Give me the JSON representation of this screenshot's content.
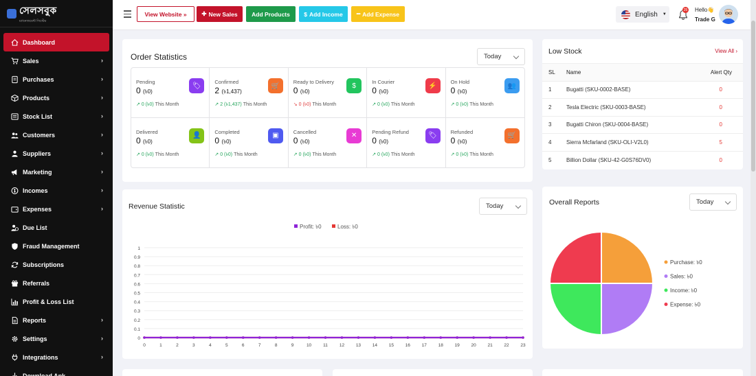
{
  "app": {
    "logo_text": "সেলসবুক",
    "logo_sub": "ম্যানেজমেন্ট সিস্টেম"
  },
  "sidebar": {
    "items": [
      {
        "label": "Dashboard",
        "icon": "home-icon",
        "chev": false
      },
      {
        "label": "Sales",
        "icon": "cart-icon",
        "chev": true
      },
      {
        "label": "Purchases",
        "icon": "purchase-icon",
        "chev": true
      },
      {
        "label": "Products",
        "icon": "box-icon",
        "chev": true
      },
      {
        "label": "Stock List",
        "icon": "list-icon",
        "chev": true
      },
      {
        "label": "Customers",
        "icon": "users-icon",
        "chev": true
      },
      {
        "label": "Suppliers",
        "icon": "supplier-icon",
        "chev": true
      },
      {
        "label": "Marketing",
        "icon": "megaphone-icon",
        "chev": true
      },
      {
        "label": "Incomes",
        "icon": "coin-icon",
        "chev": true
      },
      {
        "label": "Expenses",
        "icon": "wallet-icon",
        "chev": true
      },
      {
        "label": "Due List",
        "icon": "user-clock-icon",
        "chev": false
      },
      {
        "label": "Fraud Management",
        "icon": "shield-icon",
        "chev": false
      },
      {
        "label": "Subscriptions",
        "icon": "refresh-icon",
        "chev": false
      },
      {
        "label": "Referrals",
        "icon": "gift-icon",
        "chev": false
      },
      {
        "label": "Profit & Loss List",
        "icon": "chart-icon",
        "chev": false
      },
      {
        "label": "Reports",
        "icon": "report-icon",
        "chev": true
      },
      {
        "label": "Settings",
        "icon": "gear-icon",
        "chev": true
      },
      {
        "label": "Integrations",
        "icon": "plug-icon",
        "chev": true
      },
      {
        "label": "Download Apk",
        "icon": "download-icon",
        "chev": false
      }
    ]
  },
  "topbar": {
    "view_website": "View Website",
    "new_sales": "New Sales",
    "add_products": "Add Products",
    "add_income": "Add Income",
    "add_expense": "Add Expense",
    "language": "English",
    "notif_count": "25",
    "hello": "Hello",
    "user_name": "Trade G"
  },
  "order_stats": {
    "title": "Order Statistics",
    "period": "Today",
    "cards": [
      {
        "label": "Pending",
        "count": "0",
        "amount": "(৳0)",
        "change": "0 (৳0)",
        "suffix": "This Month",
        "trend": "up",
        "color": "#8a3df0",
        "icon": "tag-icon"
      },
      {
        "label": "Confirmed",
        "count": "2",
        "amount": "(৳1,437)",
        "change": "2 (৳1,437)",
        "suffix": "This Month",
        "trend": "up",
        "color": "#f3702d",
        "icon": "cart-icon"
      },
      {
        "label": "Ready to Delivery",
        "count": "0",
        "amount": "(৳0)",
        "change": "0 (৳0)",
        "suffix": "This Month",
        "trend": "down",
        "color": "#22c55e",
        "icon": "bag-icon"
      },
      {
        "label": "In Courier",
        "count": "0",
        "amount": "(৳0)",
        "change": "0 (৳0)",
        "suffix": "This Month",
        "trend": "up",
        "color": "#ef3b4a",
        "icon": "courier-icon"
      },
      {
        "label": "On Hold",
        "count": "0",
        "amount": "(৳0)",
        "change": "0 (৳0)",
        "suffix": "This Month",
        "trend": "up",
        "color": "#3b9cf0",
        "icon": "group-icon"
      },
      {
        "label": "Delivered",
        "count": "0",
        "amount": "(৳0)",
        "change": "0 (৳0)",
        "suffix": "This Month",
        "trend": "up",
        "color": "#84c318",
        "icon": "user-icon"
      },
      {
        "label": "Completed",
        "count": "0",
        "amount": "(৳0)",
        "change": "0 (৳0)",
        "suffix": "This Month",
        "trend": "up",
        "color": "#4f5af0",
        "icon": "calendar-icon"
      },
      {
        "label": "Cancelled",
        "count": "0",
        "amount": "(৳0)",
        "change": "0 (৳0)",
        "suffix": "This Month",
        "trend": "up",
        "color": "#e83bd4",
        "icon": "cancel-icon"
      },
      {
        "label": "Pending Refund",
        "count": "0",
        "amount": "(৳0)",
        "change": "0 (৳0)",
        "suffix": "This Month",
        "trend": "up",
        "color": "#8a3df0",
        "icon": "tag-icon"
      },
      {
        "label": "Refunded",
        "count": "0",
        "amount": "(৳0)",
        "change": "0 (৳0)",
        "suffix": "This Month",
        "trend": "up",
        "color": "#f3702d",
        "icon": "cart-icon"
      }
    ]
  },
  "low_stock": {
    "title": "Low Stock",
    "view_all": "View All",
    "columns": [
      "SL",
      "Name",
      "Alert Qty"
    ],
    "rows": [
      {
        "sl": "1",
        "name": "Bugatti (SKU-0002-BASE)",
        "qty": "0"
      },
      {
        "sl": "2",
        "name": "Tesla Electric (SKU-0003-BASE)",
        "qty": "0"
      },
      {
        "sl": "3",
        "name": "Bugatti Chiron (SKU-0004-BASE)",
        "qty": "0"
      },
      {
        "sl": "4",
        "name": "Sierra Mcfarland (SKU-OLI-V2L0)",
        "qty": "5"
      },
      {
        "sl": "5",
        "name": "Billion Dollar (SKU-42-G0S76DV0)",
        "qty": "0"
      }
    ]
  },
  "revenue": {
    "title": "Revenue Statistic",
    "period": "Today",
    "chart_data": {
      "type": "line",
      "x": [
        "0",
        "1",
        "2",
        "3",
        "4",
        "5",
        "6",
        "7",
        "8",
        "9",
        "10",
        "11",
        "12",
        "13",
        "14",
        "15",
        "16",
        "17",
        "18",
        "19",
        "20",
        "21",
        "22",
        "23"
      ],
      "series": [
        {
          "name": "Profit",
          "legend": "Profit: ৳0",
          "color": "#8e24d8",
          "values": [
            0,
            0,
            0,
            0,
            0,
            0,
            0,
            0,
            0,
            0,
            0,
            0,
            0,
            0,
            0,
            0,
            0,
            0,
            0,
            0,
            0,
            0,
            0,
            0
          ]
        },
        {
          "name": "Loss",
          "legend": "Loss: ৳0",
          "color": "#e53935",
          "values": [
            0,
            0,
            0,
            0,
            0,
            0,
            0,
            0,
            0,
            0,
            0,
            0,
            0,
            0,
            0,
            0,
            0,
            0,
            0,
            0,
            0,
            0,
            0,
            0
          ]
        }
      ],
      "yticks": [
        "0",
        "0.1",
        "0.2",
        "0.3",
        "0.4",
        "0.5",
        "0.6",
        "0.7",
        "0.8",
        "0.9",
        "1"
      ],
      "ylim": [
        0,
        1
      ]
    }
  },
  "overall": {
    "title": "Overall Reports",
    "period": "Today",
    "chart_data": {
      "type": "pie",
      "slices": [
        {
          "label": "Purchase",
          "legend": "Purchase: ৳0",
          "value": 0,
          "color": "#f59f3a"
        },
        {
          "label": "Sales",
          "legend": "Sales: ৳0",
          "value": 0,
          "color": "#b07cf5"
        },
        {
          "label": "Income",
          "legend": "Income: ৳0",
          "value": 0,
          "color": "#3ee85c"
        },
        {
          "label": "Expense",
          "legend": "Expense: ৳0",
          "value": 0,
          "color": "#ef3b4f"
        }
      ]
    }
  }
}
